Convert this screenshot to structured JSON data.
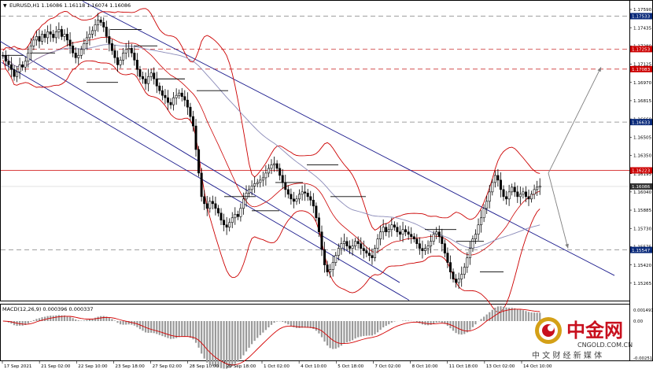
{
  "header": {
    "symbol_info": "EURUSD,H1  1.16086 1.16118 1.16074 1.16086"
  },
  "macd": {
    "label": "MACD(12,26,9) 0.000396 0.000337"
  },
  "brand": {
    "logo_text": "中金网",
    "domain": "CNGOLD.COM.CN",
    "tagline": "中 文 财 经 新 媒 体"
  },
  "colors": {
    "bullet_candle": "#000000",
    "bollinger": "#cc0000",
    "ma": "#8a8ab8",
    "channel": "#1a1a8c",
    "dashed_gray": "#808080",
    "dashed_red": "#cc3333",
    "arrow": "#7f7f7f",
    "macd_hist": "#9a9a9a",
    "macd_signal": "#d40000",
    "badge_blue": "#0a2a7a",
    "badge_red": "#cc0000",
    "badge_dark": "#333333"
  },
  "chart_data": [
    {
      "type": "line",
      "title": "EURUSD,H1",
      "ylim": [
        1.1513,
        1.1765
      ],
      "x_tick_labels": [
        "17 Sep 2021",
        "21 Sep 02:00",
        "22 Sep 10:00",
        "23 Sep 18:00",
        "27 Sep 02:00",
        "28 Sep 10:00",
        "29 Sep 18:00",
        "1 Oct 02:00",
        "4 Oct 10:00",
        "5 Oct 18:00",
        "7 Oct 02:00",
        "8 Oct 10:00",
        "11 Oct 18:00",
        "13 Oct 02:00",
        "14 Oct 10:00"
      ],
      "y_tick_labels": [
        "1.17590",
        "1.17435",
        "1.17280",
        "1.17125",
        "1.16970",
        "1.16815",
        "1.16660",
        "1.16505",
        "1.16350",
        "1.16195",
        "1.16040",
        "1.15885",
        "1.15730",
        "1.15575",
        "1.15420",
        "1.15265"
      ],
      "level_badges": [
        {
          "label": "1.17533",
          "value": 1.17533,
          "kind": "blue"
        },
        {
          "label": "1.17253",
          "value": 1.17253,
          "kind": "red"
        },
        {
          "label": "1.17083",
          "value": 1.17083,
          "kind": "red"
        },
        {
          "label": "1.16633",
          "value": 1.16633,
          "kind": "blue"
        },
        {
          "label": "1.16223",
          "value": 1.16223,
          "kind": "red"
        },
        {
          "label": "1.16086",
          "value": 1.16086,
          "kind": "dark"
        },
        {
          "label": "1.15547",
          "value": 1.15547,
          "kind": "blue"
        }
      ],
      "horizontal_levels": [
        {
          "value": 1.17533,
          "style": "dashed_gray"
        },
        {
          "value": 1.17253,
          "style": "dashed_red"
        },
        {
          "value": 1.17083,
          "style": "dashed_red"
        },
        {
          "value": 1.16633,
          "style": "dashed_gray"
        },
        {
          "value": 1.16223,
          "style": "solid_red"
        },
        {
          "value": 1.16086,
          "style": "solid_light"
        },
        {
          "value": 1.15547,
          "style": "dashed_gray"
        }
      ],
      "series": [
        {
          "kind": "close",
          "values": [
            1.172,
            1.1715,
            1.1712,
            1.1708,
            1.1702,
            1.1706,
            1.1712,
            1.171,
            1.1715,
            1.1722,
            1.1728,
            1.1733,
            1.1736,
            1.1732,
            1.1738,
            1.1735,
            1.174,
            1.1738,
            1.1735,
            1.174,
            1.1742,
            1.1736,
            1.1738,
            1.1733,
            1.1728,
            1.1722,
            1.1718,
            1.172,
            1.1725,
            1.173,
            1.1735,
            1.1738,
            1.1741,
            1.1746,
            1.175,
            1.1748,
            1.1744,
            1.1736,
            1.173,
            1.1724,
            1.1718,
            1.1712,
            1.1716,
            1.1722,
            1.1725,
            1.1726,
            1.1722,
            1.1716,
            1.1708,
            1.1702,
            1.17,
            1.1696,
            1.1702,
            1.1705,
            1.17,
            1.1694,
            1.169,
            1.1686,
            1.1684,
            1.168,
            1.1678,
            1.1684,
            1.1686,
            1.1688,
            1.1685,
            1.1682,
            1.1676,
            1.1668,
            1.166,
            1.164,
            1.162,
            1.16,
            1.1594,
            1.159,
            1.1596,
            1.1594,
            1.159,
            1.1586,
            1.158,
            1.1576,
            1.1574,
            1.1578,
            1.1582,
            1.1585,
            1.1583,
            1.159,
            1.1598,
            1.1603,
            1.1606,
            1.1609,
            1.1611,
            1.1612,
            1.1614,
            1.1616,
            1.162,
            1.1624,
            1.1627,
            1.1628,
            1.1624,
            1.1618,
            1.1612,
            1.1606,
            1.1602,
            1.1598,
            1.1596,
            1.1598,
            1.1602,
            1.1604,
            1.1603,
            1.16,
            1.1597,
            1.1592,
            1.1582,
            1.157,
            1.1555,
            1.1542,
            1.1536,
            1.1538,
            1.1544,
            1.155,
            1.1556,
            1.156,
            1.1562,
            1.1558,
            1.1556,
            1.1558,
            1.1562,
            1.156,
            1.1556,
            1.1554,
            1.1552,
            1.155,
            1.1548,
            1.1556,
            1.1564,
            1.157,
            1.1574,
            1.157,
            1.1572,
            1.1576,
            1.1574,
            1.157,
            1.1568,
            1.1572,
            1.157,
            1.1568,
            1.1566,
            1.1564,
            1.156,
            1.1556,
            1.1554,
            1.1556,
            1.1558,
            1.1562,
            1.1568,
            1.157,
            1.1566,
            1.156,
            1.1552,
            1.1544,
            1.1536,
            1.153,
            1.1527,
            1.153,
            1.1534,
            1.154,
            1.1548,
            1.1556,
            1.1564,
            1.1568,
            1.1576,
            1.1582,
            1.159,
            1.1596,
            1.1604,
            1.1612,
            1.1618,
            1.1614,
            1.1606,
            1.16,
            1.1598,
            1.1604,
            1.1608,
            1.1604,
            1.16,
            1.1602,
            1.1604,
            1.16,
            1.1598,
            1.1602,
            1.1606,
            1.1608,
            1.1609
          ]
        }
      ]
    },
    {
      "type": "bar",
      "title": "MACD(12,26,9)",
      "y_tick_labels": [
        "0.001491",
        "0.00",
        "-0.00251"
      ]
    }
  ]
}
